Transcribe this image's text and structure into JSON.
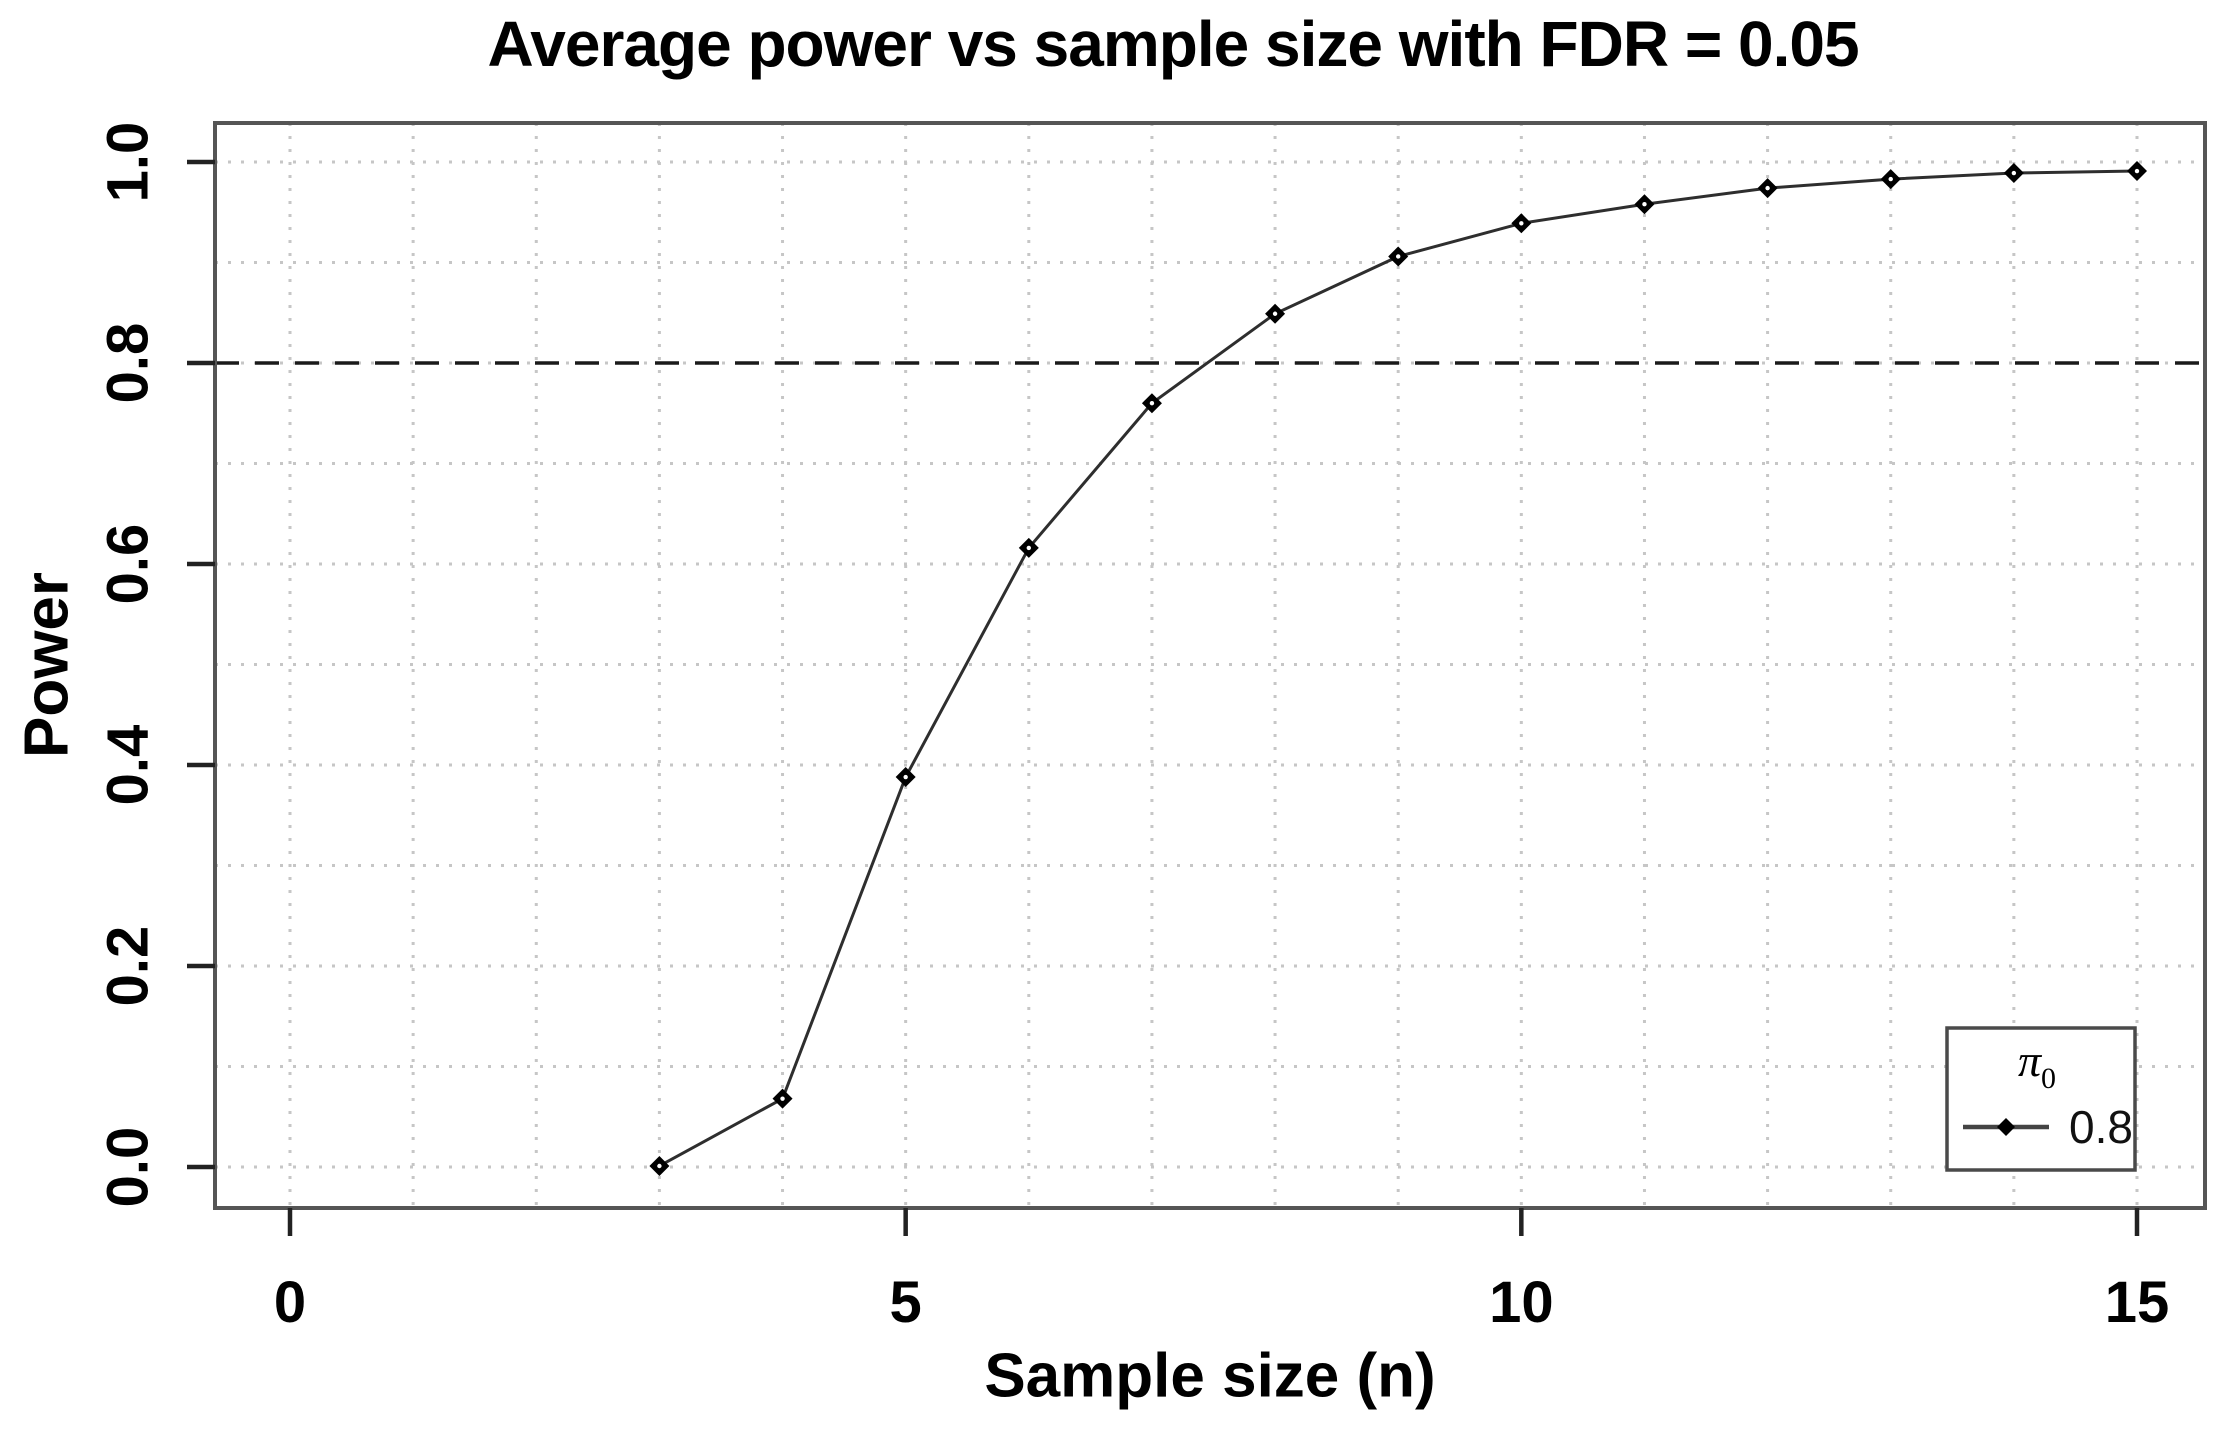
{
  "chart_data": {
    "type": "line",
    "title": "Average power vs sample size with FDR = 0.05",
    "xlabel": "Sample size (n)",
    "ylabel": "Power",
    "x": [
      3,
      4,
      5,
      6,
      7,
      8,
      9,
      10,
      11,
      12,
      13,
      14,
      15
    ],
    "series": [
      {
        "name": "0.8",
        "values": [
          0.001,
          0.068,
          0.388,
          0.616,
          0.76,
          0.849,
          0.906,
          0.939,
          0.958,
          0.974,
          0.983,
          0.989,
          0.991
        ]
      }
    ],
    "xlim": [
      -0.6,
      16.1
    ],
    "ylim": [
      -0.04,
      1.04
    ],
    "xticks": {
      "values": [
        0,
        5,
        10,
        15
      ],
      "labels": [
        "0",
        "5",
        "10",
        "15"
      ]
    },
    "yticks": {
      "values": [
        0.0,
        0.2,
        0.4,
        0.6,
        0.8,
        1.0
      ],
      "labels": [
        "0.0",
        "0.2",
        "0.4",
        "0.6",
        "0.8",
        "1.0"
      ]
    },
    "grid": {
      "x_step": 1,
      "y_step": 0.1,
      "style": "dotted",
      "on": true
    },
    "ref_line": {
      "y": 0.8,
      "style": "dashed"
    },
    "legend": {
      "position": "bottom-right",
      "title": "π",
      "title_sub": "0",
      "entries": [
        {
          "label": "0.8",
          "marker": "diamond-line"
        }
      ]
    },
    "marker": "diamond",
    "colors": {
      "line": "#2e2e2e",
      "marker": "#000000",
      "box": "#555555",
      "tick": "#222222",
      "grid": "#c6c6c6",
      "ref": "#1a1a1a",
      "text": "#000000",
      "legend_border": "#4a4a4a"
    }
  }
}
